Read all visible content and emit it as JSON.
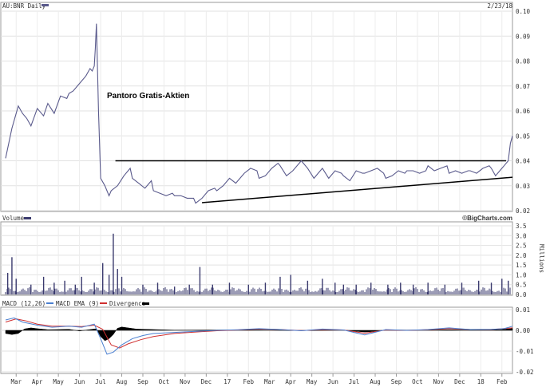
{
  "chart_data": {
    "type": "line",
    "ticker_label": "AU:BNR Daily",
    "date_label": "2/23/18",
    "annotation": "Pantoro Gratis-Aktien",
    "watermark": "©BigCharts.com",
    "x_months": [
      "Mar",
      "Apr",
      "May",
      "Jun",
      "Jul",
      "Aug",
      "Sep",
      "Oct",
      "Nov",
      "Dec",
      "17",
      "Feb",
      "Mar",
      "Apr",
      "May",
      "Jun",
      "Jul",
      "Aug",
      "Sep",
      "Oct",
      "Nov",
      "Dec",
      "18",
      "Feb"
    ],
    "price_panel": {
      "ylim": [
        0.02,
        0.1
      ],
      "y_ticks": [
        "0.10",
        "0.09",
        "0.08",
        "0.07",
        "0.06",
        "0.05",
        "0.04",
        "0.03",
        "0.02"
      ],
      "series": [
        {
          "color": "#5a5a8c",
          "x": [
            0,
            0.3,
            0.6,
            0.8,
            1,
            1.2,
            1.5,
            1.8,
            2,
            2.3,
            2.6,
            2.9,
            3,
            3.2,
            3.5,
            3.8,
            4,
            4.1,
            4.2,
            4.25,
            4.3,
            4.4,
            4.5,
            4.7,
            4.9,
            5,
            5.3,
            5.6,
            5.9,
            6,
            6.3,
            6.6,
            6.9,
            7,
            7.3,
            7.6,
            7.9,
            8,
            8.3,
            8.6,
            8.9,
            9,
            9.3,
            9.6,
            9.9,
            10,
            10.3,
            10.6,
            10.9,
            11,
            11.3,
            11.6,
            11.9,
            12,
            12.3,
            12.6,
            12.9,
            13,
            13.3,
            13.6,
            13.9,
            14,
            14.3,
            14.6,
            14.9,
            15,
            15.3,
            15.6,
            15.9,
            16,
            16.3,
            16.6,
            16.9,
            17,
            17.3,
            17.6,
            17.9,
            18,
            18.3,
            18.6,
            18.9,
            19,
            19.3,
            19.6,
            19.9,
            20,
            20.3,
            20.6,
            20.9,
            21,
            21.3,
            21.6,
            21.9,
            22,
            22.3,
            22.6,
            22.9,
            23,
            23.2,
            23.4,
            23.6,
            23.8,
            23.9,
            24
          ],
          "y": [
            0.041,
            0.053,
            0.062,
            0.059,
            0.057,
            0.054,
            0.061,
            0.058,
            0.063,
            0.059,
            0.066,
            0.065,
            0.067,
            0.068,
            0.071,
            0.074,
            0.077,
            0.076,
            0.078,
            0.085,
            0.095,
            0.06,
            0.033,
            0.03,
            0.026,
            0.028,
            0.03,
            0.034,
            0.037,
            0.033,
            0.031,
            0.029,
            0.032,
            0.028,
            0.027,
            0.026,
            0.027,
            0.026,
            0.026,
            0.025,
            0.025,
            0.023,
            0.025,
            0.028,
            0.029,
            0.028,
            0.03,
            0.033,
            0.031,
            0.032,
            0.035,
            0.037,
            0.036,
            0.033,
            0.034,
            0.037,
            0.039,
            0.038,
            0.034,
            0.036,
            0.039,
            0.04,
            0.037,
            0.033,
            0.036,
            0.037,
            0.033,
            0.036,
            0.035,
            0.034,
            0.032,
            0.036,
            0.035,
            0.035,
            0.036,
            0.037,
            0.035,
            0.033,
            0.034,
            0.036,
            0.035,
            0.036,
            0.036,
            0.035,
            0.036,
            0.038,
            0.036,
            0.037,
            0.038,
            0.035,
            0.036,
            0.035,
            0.036,
            0.036,
            0.035,
            0.037,
            0.038,
            0.037,
            0.034,
            0.036,
            0.038,
            0.04,
            0.047,
            0.05
          ]
        }
      ],
      "trendlines": [
        {
          "x": [
            5.2,
            23.7
          ],
          "y": [
            0.04,
            0.04
          ]
        },
        {
          "x": [
            9.3,
            24.0
          ],
          "y": [
            0.0232,
            0.0334
          ]
        }
      ]
    },
    "volume_panel": {
      "label": "Volume",
      "units": "Millions",
      "ylim": [
        0,
        3.5
      ],
      "y_ticks": [
        "3.5",
        "3.0",
        "2.5",
        "2.0",
        "1.5",
        "1.0",
        "0.5",
        "0.0"
      ],
      "color": "#3a3a6e",
      "bars": [
        [
          0.1,
          1.1
        ],
        [
          0.3,
          1.9
        ],
        [
          0.5,
          0.8
        ],
        [
          1.2,
          0.5
        ],
        [
          1.8,
          0.9
        ],
        [
          2.3,
          0.6
        ],
        [
          2.8,
          0.7
        ],
        [
          3.3,
          0.5
        ],
        [
          3.6,
          0.9
        ],
        [
          4.2,
          0.6
        ],
        [
          4.6,
          1.6
        ],
        [
          4.9,
          1.0
        ],
        [
          5.1,
          3.1
        ],
        [
          5.3,
          1.3
        ],
        [
          5.5,
          0.9
        ],
        [
          6.5,
          0.5
        ],
        [
          7.2,
          0.6
        ],
        [
          8.0,
          0.4
        ],
        [
          8.7,
          0.5
        ],
        [
          9.2,
          1.4
        ],
        [
          9.8,
          0.5
        ],
        [
          10.6,
          0.6
        ],
        [
          11.5,
          0.5
        ],
        [
          12.3,
          0.6
        ],
        [
          13.0,
          0.9
        ],
        [
          13.5,
          1.0
        ],
        [
          14.3,
          0.7
        ],
        [
          15.0,
          0.8
        ],
        [
          15.6,
          0.6
        ],
        [
          16.0,
          0.5
        ],
        [
          16.6,
          0.5
        ],
        [
          17.3,
          0.6
        ],
        [
          18.1,
          0.5
        ],
        [
          18.7,
          0.6
        ],
        [
          19.3,
          0.5
        ],
        [
          20.0,
          0.6
        ],
        [
          20.8,
          0.5
        ],
        [
          21.6,
          0.6
        ],
        [
          22.4,
          0.7
        ],
        [
          23.0,
          0.6
        ],
        [
          23.5,
          0.8
        ],
        [
          23.8,
          0.7
        ]
      ]
    },
    "macd_panel": {
      "label": "MACD (12,26)",
      "legend": [
        {
          "name": "MACD EMA (9)",
          "color": "#4a7fd0"
        },
        {
          "name": "Divergence",
          "color": "#d03030"
        }
      ],
      "ylim": [
        -0.02,
        0.01
      ],
      "y_ticks": [
        "0.01",
        "0.00",
        "-0.01",
        "-0.02"
      ],
      "macd": {
        "color": "#4a7fd0",
        "x": [
          0,
          0.4,
          0.8,
          1.5,
          2.2,
          3,
          3.6,
          4.2,
          4.5,
          4.8,
          5.1,
          5.5,
          6,
          6.5,
          7,
          8,
          9,
          10,
          11,
          12,
          13,
          14,
          15,
          16,
          17,
          18,
          19,
          20,
          21,
          22,
          23,
          23.6,
          24
        ],
        "y": [
          0.005,
          0.006,
          0.004,
          0.0025,
          0.0015,
          0.002,
          0.0015,
          0.003,
          -0.004,
          -0.0115,
          -0.0105,
          -0.007,
          -0.004,
          -0.0025,
          -0.0015,
          -0.001,
          -0.0005,
          0,
          0.0003,
          0.0008,
          0.0004,
          -0.0002,
          0.0006,
          0.0002,
          -0.0022,
          0.0004,
          0,
          0.0004,
          0.0012,
          0.0004,
          0.0005,
          0.0008,
          0.002
        ]
      },
      "signal": {
        "color": "#d03030",
        "x": [
          0,
          0.5,
          1,
          1.5,
          2.2,
          3,
          3.6,
          4.2,
          4.6,
          5,
          5.4,
          5.8,
          6.4,
          7,
          8,
          9,
          10,
          11,
          12,
          13,
          14,
          15,
          16,
          17,
          18,
          19,
          20,
          21,
          22,
          23,
          24
        ],
        "y": [
          0.004,
          0.0055,
          0.0045,
          0.003,
          0.002,
          0.002,
          0.0018,
          0.0025,
          0.0005,
          -0.007,
          -0.0085,
          -0.0065,
          -0.0045,
          -0.003,
          -0.0015,
          -0.0008,
          -0.0002,
          0.0002,
          0.0006,
          0.0004,
          -0.0001,
          0.0004,
          0.0002,
          -0.0014,
          0.0002,
          0,
          0.0003,
          0.0009,
          0.0004,
          0.0004,
          0.0012
        ]
      },
      "divergence": {
        "x": [
          0,
          0.3,
          0.6,
          0.9,
          1.2,
          1.5,
          2,
          2.5,
          3,
          3.5,
          4,
          4.3,
          4.5,
          4.7,
          4.9,
          5.1,
          5.3,
          5.5,
          5.8,
          6.2,
          8,
          10,
          12,
          14,
          16,
          17,
          17.3,
          18,
          20,
          21,
          22,
          23,
          23.5,
          24
        ],
        "y": [
          -0.0015,
          -0.002,
          -0.0015,
          0.0007,
          0.0012,
          0.0008,
          0.0003,
          0.0004,
          0.0005,
          -0.0003,
          0.0004,
          0.0008,
          -0.003,
          -0.005,
          -0.004,
          -0.002,
          0.001,
          0.0016,
          0.0012,
          0.0006,
          0.0001,
          0.0002,
          0.0002,
          -0.0001,
          0.0001,
          -0.0008,
          -0.0006,
          0.0002,
          0.0001,
          0.0003,
          0.0001,
          0.0002,
          0.0004,
          0.0009
        ]
      }
    }
  }
}
